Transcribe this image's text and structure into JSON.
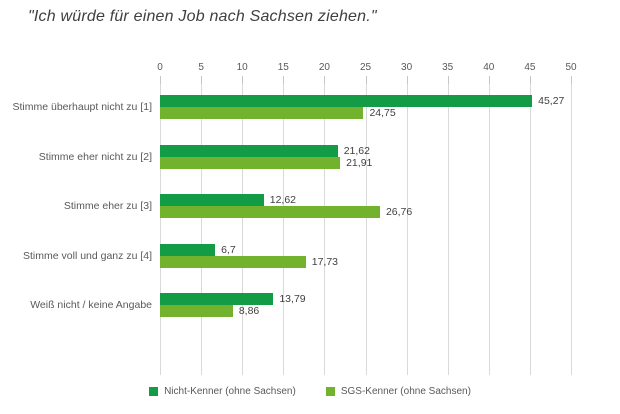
{
  "chart_data": {
    "type": "bar",
    "orientation": "horizontal",
    "title": "\"Ich würde für einen Job nach Sachsen ziehen.\"",
    "categories": [
      "Stimme überhaupt nicht zu [1]",
      "Stimme eher nicht zu [2]",
      "Stimme eher zu [3]",
      "Stimme voll und ganz zu [4]",
      "Weiß nicht / keine Angabe"
    ],
    "series": [
      {
        "name": "Nicht-Kenner (ohne Sachsen)",
        "color": "#149b45",
        "values": [
          45.27,
          21.62,
          12.62,
          6.7,
          13.79
        ]
      },
      {
        "name": "SGS-Kenner (ohne Sachsen)",
        "color": "#72b22d",
        "values": [
          24.75,
          21.91,
          26.76,
          17.73,
          8.86
        ]
      }
    ],
    "value_labels": [
      "45,27",
      "24,75",
      "21,62",
      "21,91",
      "12,62",
      "26,76",
      "6,7",
      "17,73",
      "13,79",
      "8,86"
    ],
    "xlabel": "",
    "ylabel": "",
    "xlim": [
      0,
      50
    ],
    "xticks": [
      0,
      5,
      10,
      15,
      20,
      25,
      30,
      35,
      40,
      45,
      50
    ],
    "grid": true,
    "legend_position": "bottom",
    "decimal_separator": ","
  },
  "colors": {
    "series1": "#149b45",
    "series2": "#72b22d",
    "gridline": "#d9d9d9",
    "axis_text": "#595959",
    "value_text": "#3f3f3f",
    "title_text": "#404040"
  }
}
